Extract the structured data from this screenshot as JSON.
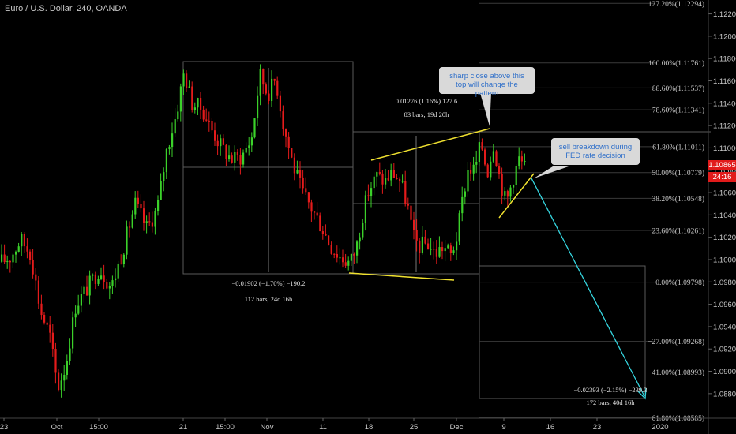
{
  "title": "Euro / U.S. Dollar, 240, OANDA",
  "current_price": {
    "label": "1.10865",
    "countdown": "24:16",
    "value": 1.10865
  },
  "colors": {
    "up": "#3bd12a",
    "down": "#e41b1b",
    "background": "#000000",
    "trendline": "#f0e130",
    "projection": "#35d6e0",
    "price_line": "#cc1a1a",
    "callout_bg": "#d9d9d9",
    "callout_text": "#2f6fc9"
  },
  "callouts": [
    {
      "text": "sharp close above this top will change the pattern"
    },
    {
      "text": "sell breakdown during FED rate decision"
    }
  ],
  "measurements": [
    {
      "line1": "0.01276 (1.16%) 127.6",
      "line2": "83 bars, 19d 20h"
    },
    {
      "line1": "−0.01902 (−1.70%) −190.2",
      "line2": "112 bars, 24d 16h"
    },
    {
      "line1": "−0.02393 (−2.15%) −239.3",
      "line2": "172 bars, 40d 16h"
    }
  ],
  "fib_levels": [
    {
      "label": "127.20%(1.12294)",
      "value": 1.12294
    },
    {
      "label": "100.00%(1.11761)",
      "value": 1.11761
    },
    {
      "label": "88.60%(1.11537)",
      "value": 1.11537
    },
    {
      "label": "78.60%(1.11341)",
      "value": 1.11341
    },
    {
      "label": "61.80%(1.11011)",
      "value": 1.11011
    },
    {
      "label": "50.00%(1.10779)",
      "value": 1.10779
    },
    {
      "label": "38.20%(1.10548)",
      "value": 1.10548
    },
    {
      "label": "23.60%(1.10261)",
      "value": 1.10261
    },
    {
      "label": "0.00%(1.09798)",
      "value": 1.09798
    },
    {
      "label": "−27.00%(1.09268)",
      "value": 1.09268
    },
    {
      "label": "−41.00%(1.08993)",
      "value": 1.08993
    },
    {
      "label": "−61.80%(1.08585)",
      "value": 1.08585
    }
  ],
  "chart_data": {
    "type": "candlestick",
    "ylim": [
      1.0858,
      1.1231
    ],
    "y_ticks": [
      "1.12200",
      "1.12000",
      "1.11800",
      "1.11600",
      "1.11400",
      "1.11200",
      "1.11000",
      "1.10800",
      "1.10600",
      "1.10400",
      "1.10200",
      "1.10000",
      "1.09800",
      "1.09600",
      "1.09400",
      "1.09200",
      "1.09000",
      "1.08800"
    ],
    "x_ticks": [
      "23",
      "Oct",
      "15:00",
      "21",
      "15:00",
      "Nov",
      "11",
      "18",
      "25",
      "Dec",
      "9",
      "16",
      "23",
      "2020"
    ],
    "price_path": [
      [
        0,
        1.0998
      ],
      [
        12,
        1.1002
      ],
      [
        25,
        1.1018
      ],
      [
        38,
        1.1005
      ],
      [
        50,
        1.0955
      ],
      [
        62,
        1.0932
      ],
      [
        72,
        1.0885
      ],
      [
        82,
        1.0905
      ],
      [
        95,
        1.096
      ],
      [
        110,
        1.0975
      ],
      [
        125,
        1.0992
      ],
      [
        140,
        1.0975
      ],
      [
        155,
        1.101
      ],
      [
        170,
        1.105
      ],
      [
        185,
        1.1028
      ],
      [
        198,
        1.1045
      ],
      [
        210,
        1.1098
      ],
      [
        222,
        1.113
      ],
      [
        232,
        1.1168
      ],
      [
        242,
        1.114
      ],
      [
        255,
        1.1135
      ],
      [
        268,
        1.1115
      ],
      [
        280,
        1.11
      ],
      [
        292,
        1.109
      ],
      [
        305,
        1.1092
      ],
      [
        318,
        1.111
      ],
      [
        328,
        1.1166
      ],
      [
        338,
        1.1148
      ],
      [
        348,
        1.1162
      ],
      [
        358,
        1.112
      ],
      [
        370,
        1.1085
      ],
      [
        382,
        1.106
      ],
      [
        394,
        1.1045
      ],
      [
        406,
        1.103
      ],
      [
        418,
        1.1012
      ],
      [
        430,
        1.1002
      ],
      [
        442,
        1.0997
      ],
      [
        450,
        1.101
      ],
      [
        458,
        1.104
      ],
      [
        466,
        1.1062
      ],
      [
        476,
        1.1075
      ],
      [
        486,
        1.107
      ],
      [
        496,
        1.1078
      ],
      [
        506,
        1.107
      ],
      [
        516,
        1.1045
      ],
      [
        522,
        1.102
      ],
      [
        530,
        1.1012
      ],
      [
        540,
        1.1015
      ],
      [
        550,
        1.1005
      ],
      [
        560,
        1.1012
      ],
      [
        570,
        1.1004
      ],
      [
        578,
        1.1022
      ],
      [
        586,
        1.106
      ],
      [
        592,
        1.1082
      ],
      [
        600,
        1.108
      ],
      [
        608,
        1.1105
      ],
      [
        616,
        1.1078
      ],
      [
        624,
        1.1105
      ],
      [
        632,
        1.1072
      ],
      [
        640,
        1.105
      ],
      [
        648,
        1.1072
      ],
      [
        656,
        1.109
      ],
      [
        664,
        1.1082
      ]
    ],
    "current_price": 1.10865
  }
}
